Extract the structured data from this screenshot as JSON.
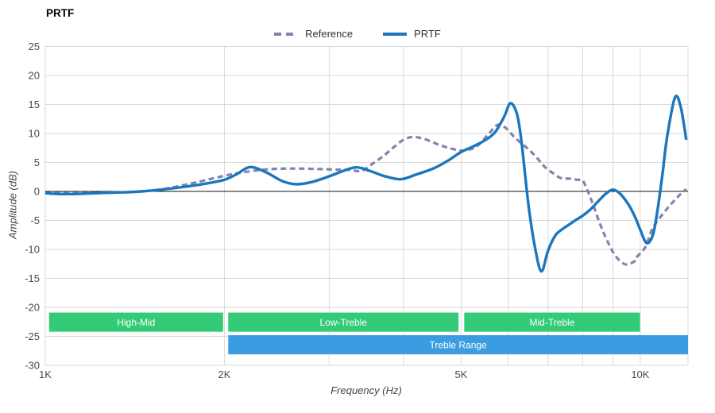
{
  "page_title": "PRTF",
  "legend": {
    "items": [
      {
        "label": "Reference",
        "style": "dashed"
      },
      {
        "label": "PRTF",
        "style": "solid"
      }
    ]
  },
  "axes": {
    "x_title": "Frequency (Hz)",
    "y_title": "Amplitude (dB)"
  },
  "chart_data": {
    "type": "line",
    "title": "PRTF",
    "xlabel": "Frequency (Hz)",
    "ylabel": "Amplitude (dB)",
    "x_scale": "log",
    "x_range_hz": [
      1000,
      12030
    ],
    "ylim": [
      -30,
      25
    ],
    "grid": true,
    "grid_color": "#d9d9d9",
    "zero_line_color": "#111111",
    "legend_position": "top-center",
    "y_ticks": [
      25,
      20,
      15,
      10,
      5,
      0,
      -5,
      -10,
      -15,
      -20,
      -25,
      -30
    ],
    "x_ticks": [
      {
        "label": "1K",
        "hz": 1000
      },
      {
        "label": "2K",
        "hz": 2000
      },
      {
        "label": "5K",
        "hz": 5000
      },
      {
        "label": "10K",
        "hz": 10000
      }
    ],
    "x_gridlines_hz": [
      2000,
      3000,
      4000,
      5000,
      6000,
      7000,
      8000,
      9000,
      10000
    ],
    "series": [
      {
        "name": "Reference",
        "color": "#8184ae",
        "style": "dashed",
        "points_hz_db": [
          [
            1000,
            -0.3
          ],
          [
            1150,
            -0.3
          ],
          [
            1300,
            -0.2
          ],
          [
            1450,
            0.0
          ],
          [
            1600,
            0.5
          ],
          [
            1800,
            1.6
          ],
          [
            2000,
            2.7
          ],
          [
            2150,
            3.3
          ],
          [
            2350,
            3.8
          ],
          [
            2600,
            3.95
          ],
          [
            2900,
            3.85
          ],
          [
            3100,
            3.75
          ],
          [
            3250,
            3.7
          ],
          [
            3400,
            3.55
          ],
          [
            3550,
            4.8
          ],
          [
            3700,
            6.1
          ],
          [
            3850,
            7.6
          ],
          [
            4000,
            8.9
          ],
          [
            4150,
            9.4
          ],
          [
            4350,
            9.0
          ],
          [
            4600,
            8.0
          ],
          [
            4850,
            7.3
          ],
          [
            5050,
            7.05
          ],
          [
            5300,
            7.7
          ],
          [
            5550,
            9.8
          ],
          [
            5760,
            11.5
          ],
          [
            5950,
            10.9
          ],
          [
            6150,
            9.3
          ],
          [
            6400,
            7.8
          ],
          [
            6650,
            6.2
          ],
          [
            6900,
            4.3
          ],
          [
            7100,
            3.3
          ],
          [
            7350,
            2.3
          ],
          [
            7600,
            2.2
          ],
          [
            7850,
            2.0
          ],
          [
            8000,
            1.9
          ],
          [
            8150,
            0.2
          ],
          [
            8350,
            -2.5
          ],
          [
            8550,
            -5.5
          ],
          [
            8800,
            -8.5
          ],
          [
            9100,
            -11.2
          ],
          [
            9450,
            -12.6
          ],
          [
            9800,
            -12.0
          ],
          [
            9850,
            -11.4
          ],
          [
            10200,
            -9.6
          ],
          [
            10500,
            -6.3
          ],
          [
            11050,
            -3.2
          ],
          [
            11600,
            -0.8
          ],
          [
            11950,
            0.4
          ]
        ]
      },
      {
        "name": "PRTF",
        "color": "#1b76bd",
        "style": "solid",
        "points_hz_db": [
          [
            1000,
            -0.3
          ],
          [
            1060,
            -0.45
          ],
          [
            1150,
            -0.4
          ],
          [
            1250,
            -0.25
          ],
          [
            1400,
            -0.1
          ],
          [
            1550,
            0.25
          ],
          [
            1700,
            0.75
          ],
          [
            1850,
            1.3
          ],
          [
            2000,
            2.0
          ],
          [
            2100,
            3.0
          ],
          [
            2210,
            4.2
          ],
          [
            2350,
            3.3
          ],
          [
            2500,
            1.8
          ],
          [
            2640,
            1.25
          ],
          [
            2800,
            1.6
          ],
          [
            3000,
            2.6
          ],
          [
            3200,
            3.7
          ],
          [
            3340,
            4.15
          ],
          [
            3500,
            3.6
          ],
          [
            3700,
            2.7
          ],
          [
            3950,
            2.1
          ],
          [
            4200,
            2.9
          ],
          [
            4500,
            4.0
          ],
          [
            4750,
            5.3
          ],
          [
            5000,
            6.8
          ],
          [
            5250,
            7.8
          ],
          [
            5500,
            8.9
          ],
          [
            5700,
            10.2
          ],
          [
            5900,
            12.8
          ],
          [
            6050,
            15.2
          ],
          [
            6200,
            13.5
          ],
          [
            6300,
            9.5
          ],
          [
            6400,
            3.2
          ],
          [
            6500,
            -3.0
          ],
          [
            6650,
            -9.5
          ],
          [
            6820,
            -13.8
          ],
          [
            7000,
            -10.2
          ],
          [
            7200,
            -7.6
          ],
          [
            7400,
            -6.5
          ],
          [
            7600,
            -5.7
          ],
          [
            7800,
            -4.9
          ],
          [
            8000,
            -4.2
          ],
          [
            8250,
            -3.1
          ],
          [
            8500,
            -1.7
          ],
          [
            8750,
            -0.4
          ],
          [
            9000,
            0.3
          ],
          [
            9250,
            -0.4
          ],
          [
            9560,
            -2.3
          ],
          [
            9800,
            -4.4
          ],
          [
            10000,
            -6.6
          ],
          [
            10250,
            -8.9
          ],
          [
            10500,
            -7.5
          ],
          [
            10700,
            -3.0
          ],
          [
            10900,
            3.0
          ],
          [
            11100,
            9.5
          ],
          [
            11440,
            16.2
          ],
          [
            11700,
            14.5
          ],
          [
            11950,
            8.9
          ]
        ]
      }
    ],
    "bands": [
      {
        "label": "High-Mid",
        "row": 0,
        "hz": [
          1015,
          1990
        ],
        "color": "#33cb76"
      },
      {
        "label": "Low-Treble",
        "row": 0,
        "hz": [
          2030,
          4950
        ],
        "color": "#33cb76"
      },
      {
        "label": "Mid-Treble",
        "row": 0,
        "hz": [
          5060,
          9990
        ],
        "color": "#33cb76"
      },
      {
        "label": "Treble Range",
        "row": 1,
        "hz": [
          2030,
          12030
        ],
        "color": "#3b9ce1"
      }
    ],
    "band_rows": [
      {
        "top_db": -20.9,
        "bottom_db": -24.2
      },
      {
        "top_db": -24.8,
        "bottom_db": -28.1
      }
    ]
  }
}
